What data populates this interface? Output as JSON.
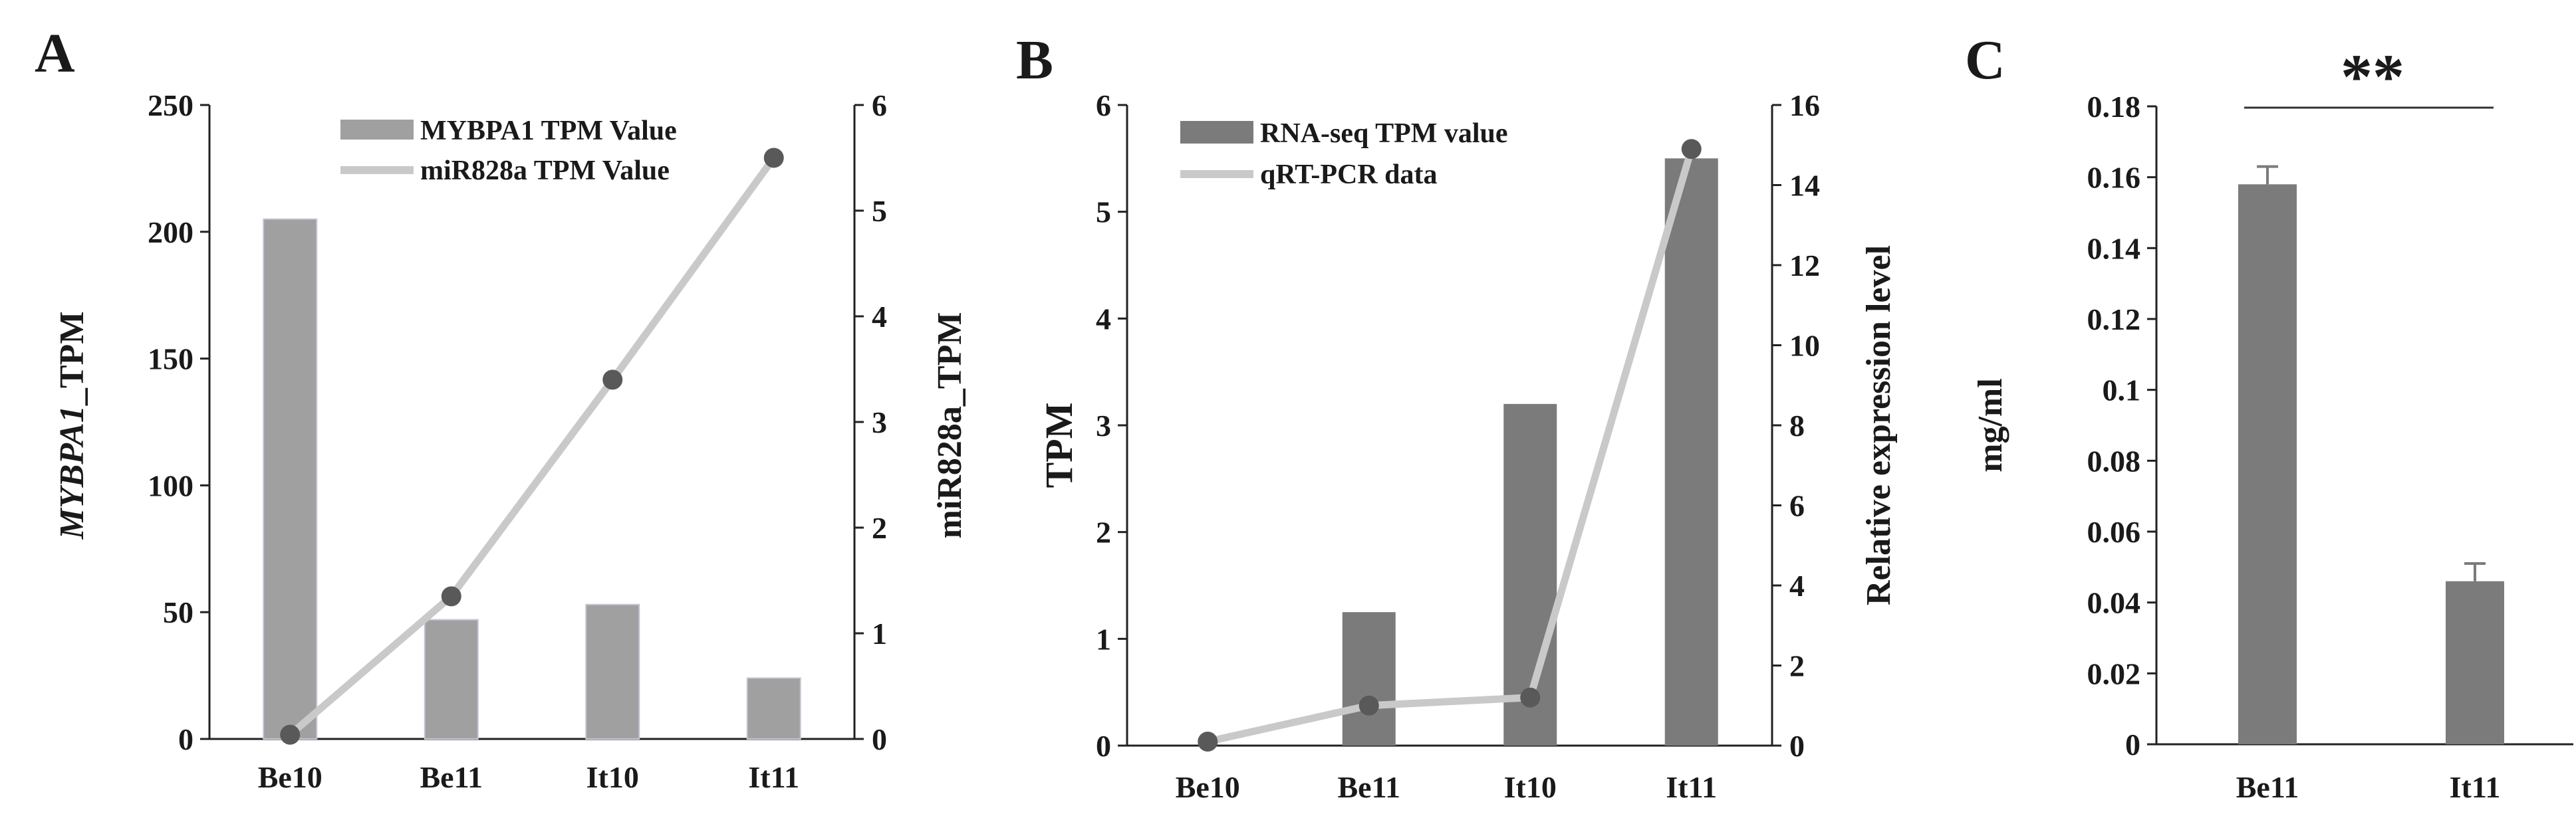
{
  "panels": {
    "A": {
      "letter": "A",
      "y_left_label_italic": "MYBPA1",
      "y_left_label_rest": "_TPM",
      "y_right_label": "miR828a_TPM",
      "legend": [
        "MYBPA1 TPM Value",
        "miR828a TPM Value"
      ],
      "left_ticks": [
        "0",
        "50",
        "100",
        "150",
        "200",
        "250"
      ],
      "right_ticks": [
        "0",
        "1",
        "2",
        "3",
        "4",
        "5",
        "6"
      ],
      "categories": [
        "Be10",
        "Be11",
        "It10",
        "It11"
      ]
    },
    "B": {
      "letter": "B",
      "y_left_label": "TPM",
      "y_right_label": "Relative expression level",
      "legend": [
        "RNA-seq TPM value",
        "qRT-PCR data"
      ],
      "left_ticks": [
        "0",
        "1",
        "2",
        "3",
        "4",
        "5",
        "6"
      ],
      "right_ticks": [
        "0",
        "2",
        "4",
        "6",
        "8",
        "10",
        "12",
        "14",
        "16"
      ],
      "categories": [
        "Be10",
        "Be11",
        "It10",
        "It11"
      ]
    },
    "C": {
      "letter": "C",
      "y_label": "mg/ml",
      "significance": "**",
      "ticks": [
        "0",
        "0.02",
        "0.04",
        "0.06",
        "0.08",
        "0.1",
        "0.12",
        "0.14",
        "0.16",
        "0.18"
      ],
      "categories": [
        "Be11",
        "It11"
      ]
    }
  },
  "colors": {
    "bar_light": "#a0a0a0",
    "bar_dark": "#7b7b7b",
    "line": "#c9c9c9",
    "marker": "#595959",
    "axis": "#222222"
  },
  "chart_data": [
    {
      "type": "bar+line",
      "panel": "A",
      "categories": [
        "Be10",
        "Be11",
        "It10",
        "It11"
      ],
      "series": [
        {
          "name": "MYBPA1 TPM Value",
          "kind": "bar",
          "axis": "left",
          "values": [
            205,
            47,
            53,
            24
          ]
        },
        {
          "name": "miR828a TPM Value",
          "kind": "line",
          "axis": "right",
          "values": [
            0.04,
            1.35,
            3.4,
            5.5
          ]
        }
      ],
      "ylabel": "MYBPA1_TPM",
      "y2label": "miR828a_TPM",
      "ylim": [
        0,
        250
      ],
      "y2lim": [
        0,
        6
      ],
      "legend": "top-center"
    },
    {
      "type": "bar+line",
      "panel": "B",
      "categories": [
        "Be10",
        "Be11",
        "It10",
        "It11"
      ],
      "series": [
        {
          "name": "RNA-seq TPM value",
          "kind": "bar",
          "axis": "left",
          "values": [
            0,
            1.25,
            3.2,
            5.5
          ]
        },
        {
          "name": "qRT-PCR data",
          "kind": "line",
          "axis": "right",
          "values": [
            0.1,
            1.0,
            1.2,
            14.9
          ]
        }
      ],
      "ylabel": "TPM",
      "y2label": "Relative expression level",
      "ylim": [
        0,
        6
      ],
      "y2lim": [
        0,
        16
      ],
      "legend": "top-left"
    },
    {
      "type": "bar",
      "panel": "C",
      "categories": [
        "Be11",
        "It11"
      ],
      "values": [
        0.158,
        0.046
      ],
      "errors": [
        0.005,
        0.005
      ],
      "ylabel": "mg/ml",
      "ylim": [
        0,
        0.18
      ],
      "annotation": "**"
    }
  ]
}
